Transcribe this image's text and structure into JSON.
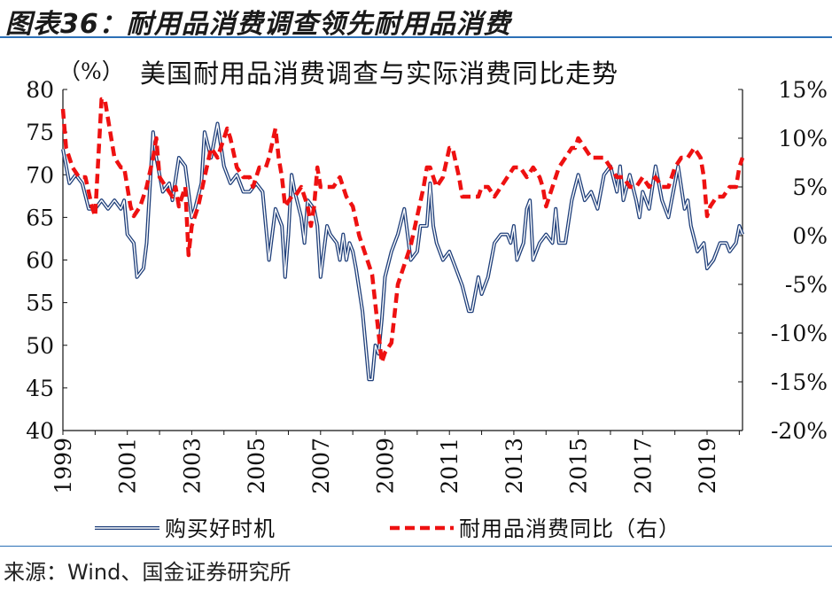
{
  "figure_title": "图表36：耐用品消费调查领先耐用品消费",
  "source_note": "来源：Wind、国金证券研究所",
  "colors": {
    "series1": "#1f3f7a",
    "series2": "#ee1111",
    "rule": "#2b6fb6"
  },
  "chart_data": {
    "type": "line",
    "title": "美国耐用品消费调查与实际消费同比走势",
    "y_left_unit": "（%）",
    "y_left_range": [
      40,
      80
    ],
    "y_left_ticks": [
      "80",
      "75",
      "70",
      "65",
      "60",
      "55",
      "50",
      "45",
      "40"
    ],
    "y_right_range": [
      -20,
      15
    ],
    "y_right_ticks": [
      "15%",
      "10%",
      "5%",
      "0%",
      "-5%",
      "-10%",
      "-15%",
      "-20%"
    ],
    "x_range": [
      1999,
      2020.1
    ],
    "x_ticks": [
      "1999",
      "2001",
      "2003",
      "2005",
      "2007",
      "2009",
      "2011",
      "2013",
      "2015",
      "2017",
      "2019"
    ],
    "series": [
      {
        "name": "购买好时机",
        "axis": "left",
        "style": "double-line",
        "points": [
          [
            1999.0,
            73
          ],
          [
            1999.2,
            69
          ],
          [
            1999.4,
            70
          ],
          [
            1999.6,
            69
          ],
          [
            1999.8,
            66
          ],
          [
            2000.0,
            66
          ],
          [
            2000.2,
            67
          ],
          [
            2000.4,
            66
          ],
          [
            2000.6,
            67
          ],
          [
            2000.8,
            66
          ],
          [
            2000.9,
            67
          ],
          [
            2001.0,
            63
          ],
          [
            2001.2,
            62
          ],
          [
            2001.3,
            58
          ],
          [
            2001.5,
            59
          ],
          [
            2001.6,
            62
          ],
          [
            2001.8,
            75
          ],
          [
            2001.9,
            72
          ],
          [
            2002.1,
            68
          ],
          [
            2002.3,
            69
          ],
          [
            2002.4,
            67
          ],
          [
            2002.6,
            72
          ],
          [
            2002.8,
            71
          ],
          [
            2003.0,
            65
          ],
          [
            2003.1,
            66
          ],
          [
            2003.3,
            69
          ],
          [
            2003.4,
            75
          ],
          [
            2003.6,
            72
          ],
          [
            2003.8,
            76
          ],
          [
            2004.0,
            71
          ],
          [
            2004.2,
            69
          ],
          [
            2004.4,
            70
          ],
          [
            2004.6,
            68
          ],
          [
            2004.8,
            68
          ],
          [
            2005.0,
            69
          ],
          [
            2005.2,
            68
          ],
          [
            2005.3,
            64
          ],
          [
            2005.4,
            60
          ],
          [
            2005.6,
            66
          ],
          [
            2005.8,
            64
          ],
          [
            2005.9,
            58
          ],
          [
            2006.0,
            63
          ],
          [
            2006.1,
            70
          ],
          [
            2006.2,
            68
          ],
          [
            2006.4,
            65
          ],
          [
            2006.5,
            62
          ],
          [
            2006.6,
            67
          ],
          [
            2006.8,
            66
          ],
          [
            2006.9,
            64
          ],
          [
            2007.0,
            58
          ],
          [
            2007.2,
            64
          ],
          [
            2007.3,
            63
          ],
          [
            2007.5,
            62
          ],
          [
            2007.6,
            60
          ],
          [
            2007.7,
            63
          ],
          [
            2007.8,
            60
          ],
          [
            2007.9,
            62
          ],
          [
            2008.0,
            61
          ],
          [
            2008.1,
            59
          ],
          [
            2008.3,
            54
          ],
          [
            2008.5,
            46
          ],
          [
            2008.6,
            46
          ],
          [
            2008.7,
            50
          ],
          [
            2008.8,
            49
          ],
          [
            2008.9,
            53
          ],
          [
            2009.0,
            58
          ],
          [
            2009.2,
            61
          ],
          [
            2009.4,
            63
          ],
          [
            2009.6,
            66
          ],
          [
            2009.7,
            63
          ],
          [
            2009.8,
            60
          ],
          [
            2010.0,
            61
          ],
          [
            2010.1,
            64
          ],
          [
            2010.3,
            64
          ],
          [
            2010.4,
            69
          ],
          [
            2010.5,
            64
          ],
          [
            2010.6,
            62
          ],
          [
            2010.8,
            60
          ],
          [
            2011.0,
            61
          ],
          [
            2011.2,
            59
          ],
          [
            2011.4,
            57
          ],
          [
            2011.6,
            54
          ],
          [
            2011.7,
            54
          ],
          [
            2011.9,
            58
          ],
          [
            2012.0,
            56
          ],
          [
            2012.2,
            58
          ],
          [
            2012.4,
            62
          ],
          [
            2012.6,
            63
          ],
          [
            2012.8,
            63
          ],
          [
            2012.9,
            62
          ],
          [
            2013.0,
            64
          ],
          [
            2013.1,
            60
          ],
          [
            2013.3,
            62
          ],
          [
            2013.4,
            66
          ],
          [
            2013.5,
            67
          ],
          [
            2013.6,
            60
          ],
          [
            2013.8,
            62
          ],
          [
            2014.0,
            63
          ],
          [
            2014.2,
            62
          ],
          [
            2014.3,
            66
          ],
          [
            2014.4,
            62
          ],
          [
            2014.6,
            62
          ],
          [
            2014.8,
            67
          ],
          [
            2015.0,
            70
          ],
          [
            2015.2,
            67
          ],
          [
            2015.4,
            68
          ],
          [
            2015.6,
            66
          ],
          [
            2015.8,
            70
          ],
          [
            2016.0,
            71
          ],
          [
            2016.2,
            68
          ],
          [
            2016.3,
            71
          ],
          [
            2016.4,
            67
          ],
          [
            2016.6,
            70
          ],
          [
            2016.8,
            67
          ],
          [
            2016.9,
            65
          ],
          [
            2017.0,
            68
          ],
          [
            2017.2,
            66
          ],
          [
            2017.4,
            71
          ],
          [
            2017.5,
            69
          ],
          [
            2017.6,
            67
          ],
          [
            2017.8,
            65
          ],
          [
            2017.9,
            67
          ],
          [
            2018.0,
            69
          ],
          [
            2018.1,
            71
          ],
          [
            2018.3,
            66
          ],
          [
            2018.4,
            67
          ],
          [
            2018.5,
            64
          ],
          [
            2018.7,
            61
          ],
          [
            2018.9,
            62
          ],
          [
            2019.0,
            59
          ],
          [
            2019.2,
            60
          ],
          [
            2019.4,
            62
          ],
          [
            2019.6,
            62
          ],
          [
            2019.7,
            61
          ],
          [
            2019.9,
            62
          ],
          [
            2020.0,
            64
          ],
          [
            2020.1,
            63
          ]
        ]
      },
      {
        "name": "耐用品消费同比（右）",
        "axis": "right",
        "style": "dashed",
        "points": [
          [
            1999.0,
            13
          ],
          [
            1999.1,
            9
          ],
          [
            1999.3,
            7
          ],
          [
            1999.5,
            6
          ],
          [
            1999.7,
            6
          ],
          [
            1999.9,
            3
          ],
          [
            2000.0,
            2
          ],
          [
            2000.2,
            14
          ],
          [
            2000.3,
            14
          ],
          [
            2000.4,
            12
          ],
          [
            2000.6,
            8
          ],
          [
            2000.8,
            7
          ],
          [
            2000.9,
            7
          ],
          [
            2001.0,
            5
          ],
          [
            2001.1,
            3
          ],
          [
            2001.2,
            2
          ],
          [
            2001.4,
            3
          ],
          [
            2001.6,
            5
          ],
          [
            2001.8,
            8
          ],
          [
            2001.9,
            10
          ],
          [
            2002.0,
            6
          ],
          [
            2002.2,
            5
          ],
          [
            2002.4,
            4
          ],
          [
            2002.5,
            5
          ],
          [
            2002.6,
            3
          ],
          [
            2002.8,
            5
          ],
          [
            2002.9,
            -2
          ],
          [
            2003.0,
            1
          ],
          [
            2003.2,
            3
          ],
          [
            2003.4,
            6
          ],
          [
            2003.6,
            9
          ],
          [
            2003.8,
            8
          ],
          [
            2004.0,
            10
          ],
          [
            2004.1,
            11
          ],
          [
            2004.2,
            10
          ],
          [
            2004.4,
            7
          ],
          [
            2004.6,
            6
          ],
          [
            2004.8,
            6
          ],
          [
            2004.9,
            5
          ],
          [
            2005.1,
            7
          ],
          [
            2005.3,
            7
          ],
          [
            2005.4,
            8
          ],
          [
            2005.6,
            11
          ],
          [
            2005.7,
            8
          ],
          [
            2005.8,
            6
          ],
          [
            2005.9,
            3
          ],
          [
            2006.1,
            4
          ],
          [
            2006.2,
            4
          ],
          [
            2006.4,
            5
          ],
          [
            2006.6,
            3
          ],
          [
            2006.7,
            1
          ],
          [
            2006.8,
            3
          ],
          [
            2006.9,
            7
          ],
          [
            2007.0,
            5
          ],
          [
            2007.2,
            5
          ],
          [
            2007.4,
            5
          ],
          [
            2007.6,
            6
          ],
          [
            2007.8,
            4
          ],
          [
            2008.0,
            3
          ],
          [
            2008.2,
            0
          ],
          [
            2008.4,
            -2
          ],
          [
            2008.6,
            -4
          ],
          [
            2008.8,
            -10
          ],
          [
            2008.9,
            -13
          ],
          [
            2009.0,
            -12
          ],
          [
            2009.2,
            -11
          ],
          [
            2009.4,
            -5
          ],
          [
            2009.6,
            -3
          ],
          [
            2009.8,
            -1
          ],
          [
            2010.0,
            2
          ],
          [
            2010.2,
            5
          ],
          [
            2010.3,
            7
          ],
          [
            2010.4,
            7
          ],
          [
            2010.6,
            5
          ],
          [
            2010.8,
            6
          ],
          [
            2011.0,
            9
          ],
          [
            2011.1,
            9
          ],
          [
            2011.3,
            6
          ],
          [
            2011.4,
            4
          ],
          [
            2011.5,
            4
          ],
          [
            2011.7,
            4
          ],
          [
            2011.8,
            4
          ],
          [
            2011.9,
            4
          ],
          [
            2012.0,
            5
          ],
          [
            2012.2,
            5
          ],
          [
            2012.4,
            4
          ],
          [
            2012.6,
            5
          ],
          [
            2012.8,
            6
          ],
          [
            2013.0,
            7
          ],
          [
            2013.2,
            7
          ],
          [
            2013.4,
            6
          ],
          [
            2013.6,
            7
          ],
          [
            2013.8,
            6
          ],
          [
            2013.9,
            5
          ],
          [
            2014.0,
            3
          ],
          [
            2014.2,
            5
          ],
          [
            2014.4,
            7
          ],
          [
            2014.6,
            8
          ],
          [
            2014.8,
            9
          ],
          [
            2014.9,
            9
          ],
          [
            2015.0,
            10
          ],
          [
            2015.2,
            9
          ],
          [
            2015.4,
            8
          ],
          [
            2015.6,
            8
          ],
          [
            2015.8,
            8
          ],
          [
            2016.0,
            7
          ],
          [
            2016.2,
            6
          ],
          [
            2016.4,
            6
          ],
          [
            2016.6,
            5
          ],
          [
            2016.8,
            5
          ],
          [
            2017.0,
            6
          ],
          [
            2017.2,
            5
          ],
          [
            2017.4,
            6
          ],
          [
            2017.6,
            5
          ],
          [
            2017.8,
            5
          ],
          [
            2018.0,
            7
          ],
          [
            2018.2,
            8
          ],
          [
            2018.4,
            8
          ],
          [
            2018.6,
            9
          ],
          [
            2018.8,
            8
          ],
          [
            2018.9,
            6
          ],
          [
            2019.0,
            2
          ],
          [
            2019.1,
            3
          ],
          [
            2019.3,
            4
          ],
          [
            2019.5,
            4
          ],
          [
            2019.7,
            5
          ],
          [
            2019.9,
            5
          ],
          [
            2020.0,
            7
          ],
          [
            2020.1,
            8
          ]
        ]
      }
    ]
  }
}
